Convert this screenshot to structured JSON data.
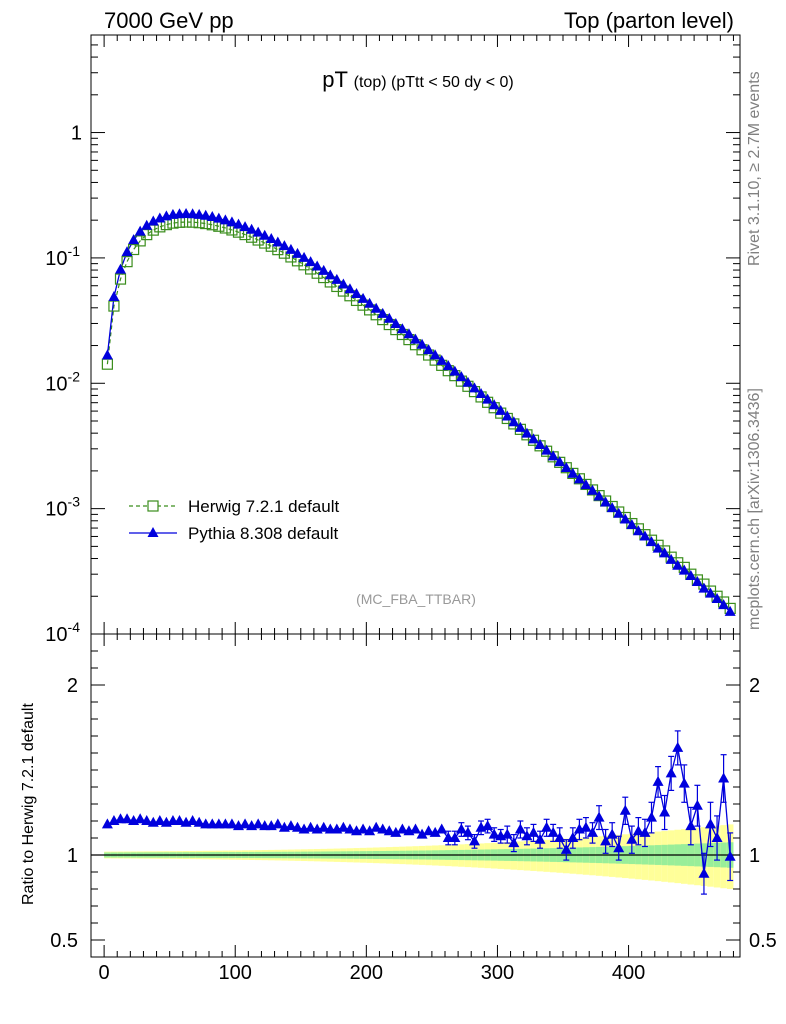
{
  "header": {
    "left": "7000 GeV pp",
    "right": "Top (parton level)"
  },
  "side_labels": {
    "rivet": "Rivet 3.1.10, ≥ 2.7M events",
    "mcplots": "mcplots.cern.ch [arXiv:1306.3436]"
  },
  "colors": {
    "herwig": "#3a8d1c",
    "pythia": "#0000dd",
    "band_outer": "#ffff99",
    "band_inner": "#99ee99"
  },
  "chart_data": [
    {
      "type": "line",
      "title_main": "pT",
      "title_sub": "(top)",
      "title_cut": "(pTtt < 50 dy < 0)",
      "watermark": "(MC_FBA_TTBAR)",
      "yscale": "log",
      "ylim": [
        0.0001,
        6
      ],
      "xlim": [
        -10,
        485
      ],
      "y_tick_labels": [
        "1",
        "10^-1",
        "10^-2",
        "10^-3",
        "10^-4"
      ],
      "legend_position": "bottom-left",
      "x": [
        2.5,
        7.5,
        12.5,
        17.5,
        22.5,
        27.5,
        32.5,
        37.5,
        42.5,
        47.5,
        52.5,
        57.5,
        62.5,
        67.5,
        72.5,
        77.5,
        82.5,
        87.5,
        92.5,
        97.5,
        102.5,
        107.5,
        112.5,
        117.5,
        122.5,
        127.5,
        132.5,
        137.5,
        142.5,
        147.5,
        152.5,
        157.5,
        162.5,
        167.5,
        172.5,
        177.5,
        182.5,
        187.5,
        192.5,
        197.5,
        202.5,
        207.5,
        212.5,
        217.5,
        222.5,
        227.5,
        232.5,
        237.5,
        242.5,
        247.5,
        252.5,
        257.5,
        262.5,
        267.5,
        272.5,
        277.5,
        282.5,
        287.5,
        292.5,
        297.5,
        302.5,
        307.5,
        312.5,
        317.5,
        322.5,
        327.5,
        332.5,
        337.5,
        342.5,
        347.5,
        352.5,
        357.5,
        362.5,
        367.5,
        372.5,
        377.5,
        382.5,
        387.5,
        392.5,
        397.5,
        402.5,
        407.5,
        412.5,
        417.5,
        422.5,
        427.5,
        432.5,
        437.5,
        442.5,
        447.5,
        452.5,
        457.5,
        462.5,
        467.5,
        472.5,
        477.5
      ],
      "series": [
        {
          "name": "Herwig 7.2.1 default",
          "marker": "open-square",
          "style": "dashed",
          "values": [
            0.0142,
            0.0413,
            0.0678,
            0.0934,
            0.1167,
            0.1367,
            0.1534,
            0.1666,
            0.1769,
            0.1843,
            0.1895,
            0.1923,
            0.1933,
            0.1928,
            0.1909,
            0.1879,
            0.1838,
            0.1789,
            0.1733,
            0.1671,
            0.1605,
            0.1535,
            0.1463,
            0.1389,
            0.1314,
            0.1239,
            0.1164,
            0.1091,
            0.1018,
            0.0948,
            0.0881,
            0.0816,
            0.0755,
            0.0697,
            0.0643,
            0.0592,
            0.0544,
            0.0499,
            0.0458,
            0.042,
            0.0385,
            0.0352,
            0.0322,
            0.0294,
            0.0268,
            0.0245,
            0.0223,
            0.0203,
            0.0185,
            0.0168,
            0.0153,
            0.0139,
            0.0126,
            0.0115,
            0.0104,
            0.00946,
            0.00858,
            0.00778,
            0.00705,
            0.00638,
            0.00578,
            0.00524,
            0.00474,
            0.00429,
            0.00388,
            0.00351,
            0.00317,
            0.00287,
            0.00259,
            0.00234,
            0.00212,
            0.00191,
            0.00173,
            0.00156,
            0.00141,
            0.00127,
            0.00115,
            0.00104,
            0.00094,
            0.00085,
            0.00076,
            0.00069,
            0.00062,
            0.00056,
            0.00051,
            0.00046,
            0.00041,
            0.00037,
            0.00034,
            0.0003,
            0.00027,
            0.00025,
            0.00022,
            0.0002,
            0.00018,
            0.00016
          ]
        },
        {
          "name": "Pythia 8.308 default",
          "marker": "filled-triangle",
          "style": "solid",
          "values": [
            0.0167,
            0.0488,
            0.0807,
            0.1113,
            0.1388,
            0.1619,
            0.1806,
            0.1951,
            0.2063,
            0.2146,
            0.2202,
            0.2232,
            0.2241,
            0.2232,
            0.2207,
            0.217,
            0.2119,
            0.2059,
            0.1994,
            0.1922,
            0.1843,
            0.1761,
            0.1677,
            0.1591,
            0.1503,
            0.1414,
            0.1328,
            0.1242,
            0.1158,
            0.1078,
            0.1001,
            0.0926,
            0.0855,
            0.0788,
            0.0726,
            0.0668,
            0.0613,
            0.0562,
            0.0515,
            0.0471,
            0.0431,
            0.0393,
            0.0358,
            0.0327,
            0.0297,
            0.027,
            0.0246,
            0.0223,
            0.0203,
            0.0184,
            0.0167,
            0.0151,
            0.0137,
            0.0124,
            0.0112,
            0.0101,
            0.0091,
            0.00822,
            0.00741,
            0.00668,
            0.00602,
            0.00543,
            0.00489,
            0.00441,
            0.00397,
            0.00357,
            0.00322,
            0.0029,
            0.00261,
            0.00235,
            0.00211,
            0.0019,
            0.00171,
            0.00154,
            0.00139,
            0.00125,
            0.00112,
            0.00101,
            0.00091,
            0.00082,
            0.00074,
            0.00066,
            0.0006,
            0.00054,
            0.00048,
            0.00044,
            0.00039,
            0.00035,
            0.00032,
            0.00029,
            0.00026,
            0.00023,
            0.00021,
            0.00019,
            0.00017,
            0.00015
          ]
        }
      ]
    },
    {
      "type": "line",
      "ylabel": "Ratio to Herwig 7.2.1 default",
      "ylim": [
        0.4,
        2.3
      ],
      "xlim": [
        -10,
        485
      ],
      "x_ticks": [
        0,
        100,
        200,
        300,
        400
      ],
      "y_ticks": [
        0.5,
        1,
        2
      ],
      "y_tick_labels": [
        "0.5",
        "1",
        "2"
      ],
      "x": [
        2.5,
        7.5,
        12.5,
        17.5,
        22.5,
        27.5,
        32.5,
        37.5,
        42.5,
        47.5,
        52.5,
        57.5,
        62.5,
        67.5,
        72.5,
        77.5,
        82.5,
        87.5,
        92.5,
        97.5,
        102.5,
        107.5,
        112.5,
        117.5,
        122.5,
        127.5,
        132.5,
        137.5,
        142.5,
        147.5,
        152.5,
        157.5,
        162.5,
        167.5,
        172.5,
        177.5,
        182.5,
        187.5,
        192.5,
        197.5,
        202.5,
        207.5,
        212.5,
        217.5,
        222.5,
        227.5,
        232.5,
        237.5,
        242.5,
        247.5,
        252.5,
        257.5,
        262.5,
        267.5,
        272.5,
        277.5,
        282.5,
        287.5,
        292.5,
        297.5,
        302.5,
        307.5,
        312.5,
        317.5,
        322.5,
        327.5,
        332.5,
        337.5,
        342.5,
        347.5,
        352.5,
        357.5,
        362.5,
        367.5,
        372.5,
        377.5,
        382.5,
        387.5,
        392.5,
        397.5,
        402.5,
        407.5,
        412.5,
        417.5,
        422.5,
        427.5,
        432.5,
        437.5,
        442.5,
        447.5,
        452.5,
        457.5,
        462.5,
        467.5,
        472.5,
        477.5
      ],
      "series": [
        {
          "name": "Herwig 7.2.1 default",
          "values": [
            1,
            1,
            1,
            1,
            1,
            1,
            1,
            1,
            1,
            1,
            1,
            1,
            1,
            1,
            1,
            1,
            1,
            1,
            1,
            1,
            1,
            1,
            1,
            1,
            1,
            1,
            1,
            1,
            1,
            1,
            1,
            1,
            1,
            1,
            1,
            1,
            1,
            1,
            1,
            1,
            1,
            1,
            1,
            1,
            1,
            1,
            1,
            1,
            1,
            1,
            1,
            1,
            1,
            1,
            1,
            1,
            1,
            1,
            1,
            1,
            1,
            1,
            1,
            1,
            1,
            1,
            1,
            1,
            1,
            1,
            1,
            1,
            1,
            1,
            1,
            1,
            1,
            1,
            1,
            1,
            1,
            1,
            1,
            1,
            1,
            1,
            1,
            1,
            1,
            1,
            1,
            1,
            1,
            1,
            1,
            1
          ]
        },
        {
          "name": "Pythia 8.308 default",
          "values": [
            1.18,
            1.2,
            1.21,
            1.21,
            1.2,
            1.21,
            1.2,
            1.19,
            1.2,
            1.19,
            1.2,
            1.2,
            1.19,
            1.2,
            1.19,
            1.18,
            1.18,
            1.18,
            1.18,
            1.18,
            1.17,
            1.18,
            1.17,
            1.18,
            1.17,
            1.17,
            1.18,
            1.16,
            1.17,
            1.16,
            1.15,
            1.16,
            1.15,
            1.16,
            1.15,
            1.15,
            1.16,
            1.15,
            1.14,
            1.15,
            1.14,
            1.16,
            1.15,
            1.14,
            1.13,
            1.15,
            1.14,
            1.15,
            1.12,
            1.14,
            1.13,
            1.15,
            1.1,
            1.1,
            1.15,
            1.13,
            1.08,
            1.16,
            1.17,
            1.12,
            1.11,
            1.12,
            1.07,
            1.15,
            1.11,
            1.13,
            1.09,
            1.16,
            1.13,
            1.1,
            1.03,
            1.1,
            1.15,
            1.16,
            1.13,
            1.22,
            1.08,
            1.12,
            1.04,
            1.26,
            1.09,
            1.14,
            1.13,
            1.22,
            1.43,
            1.25,
            1.48,
            1.63,
            1.42,
            1.17,
            1.29,
            0.89,
            1.18,
            1.1,
            1.45,
            0.99
          ],
          "errors": [
            0.02,
            0.02,
            0.02,
            0.02,
            0.02,
            0.02,
            0.02,
            0.02,
            0.02,
            0.02,
            0.02,
            0.02,
            0.02,
            0.02,
            0.02,
            0.02,
            0.02,
            0.02,
            0.02,
            0.02,
            0.02,
            0.02,
            0.02,
            0.02,
            0.02,
            0.02,
            0.02,
            0.02,
            0.02,
            0.02,
            0.02,
            0.02,
            0.02,
            0.02,
            0.02,
            0.02,
            0.02,
            0.02,
            0.02,
            0.02,
            0.02,
            0.02,
            0.02,
            0.02,
            0.03,
            0.03,
            0.03,
            0.03,
            0.03,
            0.03,
            0.03,
            0.03,
            0.04,
            0.04,
            0.04,
            0.04,
            0.04,
            0.04,
            0.04,
            0.04,
            0.04,
            0.05,
            0.05,
            0.05,
            0.05,
            0.05,
            0.05,
            0.05,
            0.05,
            0.06,
            0.06,
            0.06,
            0.06,
            0.06,
            0.06,
            0.07,
            0.07,
            0.07,
            0.07,
            0.08,
            0.08,
            0.08,
            0.08,
            0.09,
            0.09,
            0.1,
            0.1,
            0.1,
            0.11,
            0.11,
            0.12,
            0.12,
            0.13,
            0.13,
            0.14,
            0.14
          ]
        }
      ]
    }
  ]
}
